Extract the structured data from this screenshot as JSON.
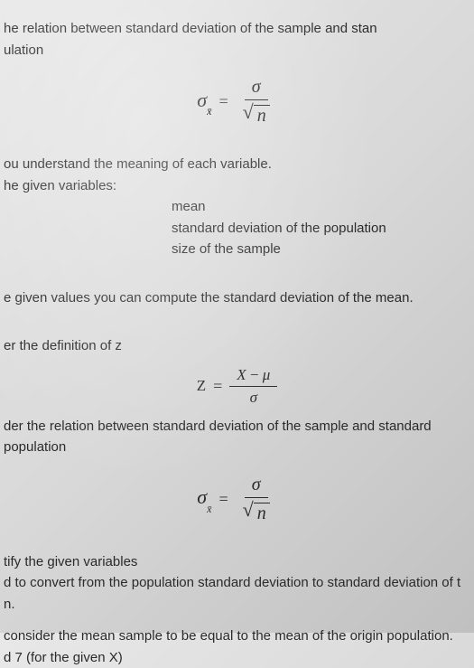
{
  "line1": "he relation between standard deviation of the sample and stan",
  "line2": "ulation",
  "formula1": {
    "lhs_sigma": "σ",
    "lhs_sub": "x̄",
    "eq": "=",
    "num": "σ",
    "denom_radicand": "n"
  },
  "line3": "ou understand the meaning of each variable.",
  "line4": "he given variables:",
  "var1": "mean",
  "var2": "standard deviation of the population",
  "var3": "size of the sample",
  "line5": "e given values you can compute the standard deviation of the mean.",
  "line6": "er the definition of z",
  "formula2": {
    "lhs": "Z",
    "eq": "=",
    "num_x": "X",
    "num_minus": "−",
    "num_mu": "μ",
    "denom": "σ"
  },
  "line7": "der the relation between standard deviation of the sample and standard",
  "line8": " population",
  "formula3": {
    "lhs_sigma": "σ",
    "lhs_sub": "x̄",
    "eq": "=",
    "num": "σ",
    "denom_radicand": "n"
  },
  "line9": "tify the given variables",
  "line10": "d to convert from the population standard deviation to standard deviation of t",
  "line11": "n.",
  "line12": " consider the mean sample to be equal to the mean of the origin population.",
  "line13": "d 7 (for the given X)",
  "colors": {
    "text": "#2a2a2a",
    "bg_light": "#e8e8e8",
    "bg_dark": "#c0c0c0"
  },
  "fontsize": {
    "body": 15,
    "formula": 20,
    "formula_small": 17
  }
}
